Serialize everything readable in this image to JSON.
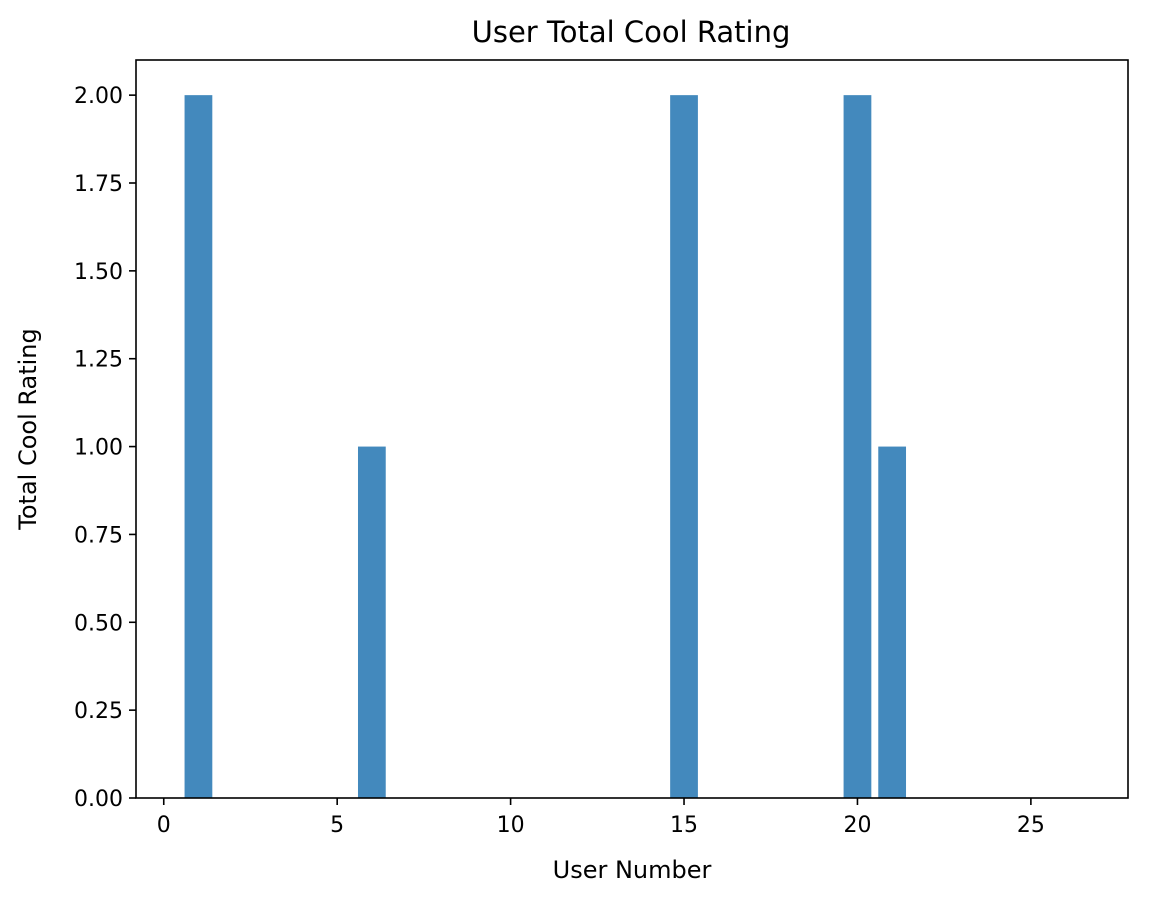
{
  "chart_data": {
    "type": "bar",
    "title": "User Total Cool Rating",
    "xlabel": "User Number",
    "ylabel": "Total Cool Rating",
    "x": [
      1,
      6,
      15,
      20,
      21
    ],
    "values": [
      2,
      1,
      2,
      2,
      1
    ],
    "bar_width": 0.8,
    "xlim": [
      -0.8,
      27.8
    ],
    "ylim": [
      0,
      2.1
    ],
    "xticks": [
      0,
      5,
      10,
      15,
      20,
      25
    ],
    "xtick_labels": [
      "0",
      "5",
      "10",
      "15",
      "20",
      "25"
    ],
    "yticks": [
      0,
      0.25,
      0.5,
      0.75,
      1.0,
      1.25,
      1.5,
      1.75,
      2.0
    ],
    "ytick_labels": [
      "0.00",
      "0.25",
      "0.50",
      "0.75",
      "1.00",
      "1.25",
      "1.50",
      "1.75",
      "2.00"
    ],
    "bar_color": "#4389bd",
    "grid": false,
    "legend": false
  }
}
